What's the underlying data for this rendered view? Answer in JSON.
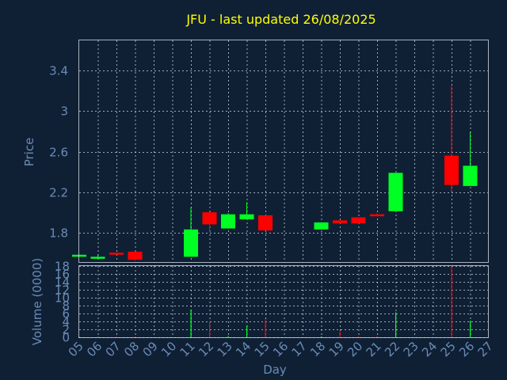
{
  "title": "JFU - last updated 26/08/2025",
  "colors": {
    "background": "#0f2035",
    "title": "#ffff00",
    "axis_text": "#6b8bb5",
    "up": "#00ff22",
    "down": "#ff0000",
    "grid": "#cfd6e0"
  },
  "chart_data": [
    {
      "type": "candlestick",
      "ylabel": "Price",
      "ylim": [
        1.5,
        3.7
      ],
      "yticks": [
        "1.8",
        "2.2",
        "2.6",
        "3",
        "3.4"
      ],
      "grid": true,
      "candles": [
        {
          "day": "05",
          "open": 1.57,
          "high": 1.58,
          "low": 1.56,
          "close": 1.58
        },
        {
          "day": "06",
          "open": 1.55,
          "high": 1.58,
          "low": 1.55,
          "close": 1.56
        },
        {
          "day": "07",
          "open": 1.6,
          "high": 1.6,
          "low": 1.59,
          "close": 1.59
        },
        {
          "day": "08",
          "open": 1.61,
          "high": 1.61,
          "low": 1.52,
          "close": 1.53
        },
        {
          "day": "11",
          "open": 1.56,
          "high": 2.05,
          "low": 1.56,
          "close": 1.83
        },
        {
          "day": "12",
          "open": 2.0,
          "high": 2.0,
          "low": 1.8,
          "close": 1.88
        },
        {
          "day": "13",
          "open": 1.84,
          "high": 1.99,
          "low": 1.84,
          "close": 1.98
        },
        {
          "day": "14",
          "open": 1.93,
          "high": 2.1,
          "low": 1.93,
          "close": 1.98
        },
        {
          "day": "15",
          "open": 1.97,
          "high": 1.97,
          "low": 1.82,
          "close": 1.82
        },
        {
          "day": "18",
          "open": 1.83,
          "high": 1.9,
          "low": 1.83,
          "close": 1.9
        },
        {
          "day": "19",
          "open": 1.92,
          "high": 1.92,
          "low": 1.89,
          "close": 1.89
        },
        {
          "day": "20",
          "open": 1.95,
          "high": 1.95,
          "low": 1.89,
          "close": 1.89
        },
        {
          "day": "21",
          "open": 1.98,
          "high": 1.99,
          "low": 1.96,
          "close": 1.97
        },
        {
          "day": "22",
          "open": 2.01,
          "high": 2.39,
          "low": 2.01,
          "close": 2.39
        },
        {
          "day": "25",
          "open": 2.56,
          "high": 3.25,
          "low": 2.2,
          "close": 2.27
        },
        {
          "day": "26",
          "open": 2.26,
          "high": 2.8,
          "low": 2.26,
          "close": 2.46
        }
      ]
    },
    {
      "type": "bar",
      "ylabel": "Volume (0000)",
      "ylim": [
        0,
        18
      ],
      "yticks": [
        "0",
        "2",
        "4",
        "6",
        "8",
        "10",
        "12",
        "14",
        "16",
        "18"
      ],
      "grid": true,
      "bars": [
        {
          "day": "05",
          "value": 0.1,
          "direction": "up"
        },
        {
          "day": "06",
          "value": 0.1,
          "direction": "up"
        },
        {
          "day": "07",
          "value": 0.1,
          "direction": "down"
        },
        {
          "day": "08",
          "value": 0.2,
          "direction": "down"
        },
        {
          "day": "11",
          "value": 7.0,
          "direction": "up"
        },
        {
          "day": "12",
          "value": 4.0,
          "direction": "down"
        },
        {
          "day": "13",
          "value": 0.3,
          "direction": "up"
        },
        {
          "day": "14",
          "value": 3.0,
          "direction": "up"
        },
        {
          "day": "15",
          "value": 4.5,
          "direction": "down"
        },
        {
          "day": "18",
          "value": 0.2,
          "direction": "up"
        },
        {
          "day": "19",
          "value": 1.5,
          "direction": "down"
        },
        {
          "day": "20",
          "value": 0.2,
          "direction": "down"
        },
        {
          "day": "21",
          "value": 0.2,
          "direction": "down"
        },
        {
          "day": "22",
          "value": 6.3,
          "direction": "up"
        },
        {
          "day": "25",
          "value": 18.0,
          "direction": "down"
        },
        {
          "day": "26",
          "value": 4.2,
          "direction": "up"
        }
      ]
    }
  ],
  "xaxis": {
    "label": "Day",
    "ticks": [
      "05",
      "06",
      "07",
      "08",
      "09",
      "10",
      "11",
      "12",
      "13",
      "14",
      "15",
      "16",
      "17",
      "18",
      "19",
      "20",
      "21",
      "22",
      "23",
      "24",
      "25",
      "26",
      "27"
    ]
  }
}
